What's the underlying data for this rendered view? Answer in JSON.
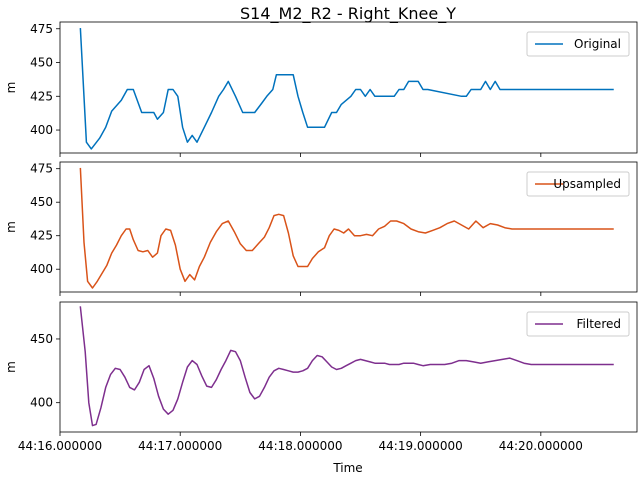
{
  "chart_data": {
    "type": "line",
    "title": "S14_M2_R2 - Right_Knee_Y",
    "xlabel": "Time",
    "x_ticks": [
      "44:16.000000",
      "44:17.000000",
      "44:18.000000",
      "44:19.000000",
      "44:20.000000"
    ],
    "x_tick_seconds": [
      0,
      1,
      2,
      3,
      4
    ],
    "xlim": [
      0,
      4.8
    ],
    "grid": false,
    "legend_placement": "upper right",
    "panels": [
      {
        "series_name": "Original",
        "ylabel": "m",
        "color": "#0072bd",
        "ylim": [
          383,
          480
        ],
        "y_ticks": [
          400,
          425,
          450,
          475
        ],
        "x": [
          0.17,
          0.22,
          0.26,
          0.33,
          0.38,
          0.43,
          0.51,
          0.56,
          0.61,
          0.68,
          0.72,
          0.78,
          0.81,
          0.86,
          0.9,
          0.94,
          0.98,
          1.02,
          1.06,
          1.1,
          1.14,
          1.2,
          1.26,
          1.32,
          1.36,
          1.4,
          1.46,
          1.52,
          1.56,
          1.62,
          1.68,
          1.72,
          1.77,
          1.8,
          1.86,
          1.94,
          1.98,
          2.02,
          2.06,
          2.14,
          2.2,
          2.26,
          2.3,
          2.34,
          2.42,
          2.46,
          2.5,
          2.54,
          2.58,
          2.62,
          2.66,
          2.7,
          2.74,
          2.78,
          2.82,
          2.86,
          2.9,
          2.94,
          2.98,
          3.02,
          3.06,
          3.34,
          3.38,
          3.42,
          3.46,
          3.5,
          3.54,
          3.58,
          3.62,
          3.66,
          3.7,
          3.74,
          4.6
        ],
        "values": [
          475,
          391,
          386,
          394,
          402,
          414,
          422,
          430,
          430,
          413,
          413,
          413,
          408,
          413,
          430,
          430,
          425,
          402,
          391,
          396,
          391,
          402,
          413,
          425,
          430,
          436,
          425,
          413,
          413,
          413,
          420,
          425,
          430,
          441,
          441,
          441,
          425,
          413,
          402,
          402,
          402,
          413,
          413,
          419,
          425,
          430,
          430,
          425,
          430,
          425,
          425,
          425,
          425,
          425,
          430,
          430,
          436,
          436,
          436,
          430,
          430,
          425,
          425,
          430,
          430,
          430,
          436,
          430,
          436,
          430,
          430,
          430,
          430
        ]
      },
      {
        "series_name": "Upsampled",
        "ylabel": "m",
        "color": "#d95319",
        "ylim": [
          383,
          480
        ],
        "y_ticks": [
          400,
          425,
          450,
          475
        ],
        "x": [
          0.17,
          0.2,
          0.23,
          0.27,
          0.31,
          0.35,
          0.39,
          0.43,
          0.47,
          0.51,
          0.55,
          0.58,
          0.61,
          0.65,
          0.69,
          0.73,
          0.77,
          0.81,
          0.84,
          0.88,
          0.92,
          0.96,
          1.0,
          1.04,
          1.08,
          1.12,
          1.16,
          1.2,
          1.25,
          1.3,
          1.35,
          1.4,
          1.45,
          1.5,
          1.55,
          1.6,
          1.65,
          1.7,
          1.74,
          1.78,
          1.82,
          1.86,
          1.9,
          1.94,
          1.98,
          2.02,
          2.06,
          2.1,
          2.15,
          2.2,
          2.24,
          2.28,
          2.32,
          2.36,
          2.4,
          2.45,
          2.5,
          2.55,
          2.6,
          2.65,
          2.7,
          2.75,
          2.8,
          2.86,
          2.92,
          2.98,
          3.04,
          3.1,
          3.16,
          3.22,
          3.28,
          3.34,
          3.4,
          3.46,
          3.52,
          3.58,
          3.64,
          3.7,
          3.76,
          3.82,
          3.88,
          3.94,
          4.0,
          4.1,
          4.2,
          4.3,
          4.4,
          4.5,
          4.6
        ],
        "values": [
          475,
          420,
          391,
          386,
          391,
          397,
          403,
          412,
          418,
          425,
          430,
          430,
          422,
          414,
          413,
          414,
          409,
          412,
          425,
          430,
          429,
          418,
          400,
          391,
          396,
          392,
          402,
          409,
          420,
          428,
          434,
          436,
          428,
          419,
          414,
          414,
          419,
          424,
          431,
          440,
          441,
          440,
          427,
          410,
          402,
          402,
          402,
          408,
          413,
          416,
          425,
          430,
          429,
          427,
          430,
          425,
          425,
          426,
          425,
          430,
          432,
          436,
          436,
          434,
          430,
          428,
          427,
          429,
          431,
          434,
          436,
          433,
          430,
          436,
          431,
          434,
          433,
          431,
          430,
          430,
          430,
          430,
          430,
          430,
          430,
          430,
          430,
          430,
          430
        ]
      },
      {
        "series_name": "Filtered",
        "ylabel": "m",
        "color": "#7e2f8e",
        "ylim": [
          377,
          479
        ],
        "y_ticks": [
          400,
          450
        ],
        "x": [
          0.17,
          0.21,
          0.24,
          0.27,
          0.3,
          0.34,
          0.38,
          0.42,
          0.46,
          0.5,
          0.54,
          0.58,
          0.62,
          0.66,
          0.7,
          0.74,
          0.78,
          0.82,
          0.86,
          0.9,
          0.94,
          0.98,
          1.02,
          1.06,
          1.1,
          1.14,
          1.18,
          1.22,
          1.26,
          1.3,
          1.34,
          1.38,
          1.42,
          1.46,
          1.5,
          1.54,
          1.58,
          1.62,
          1.66,
          1.7,
          1.74,
          1.78,
          1.82,
          1.86,
          1.9,
          1.94,
          1.98,
          2.02,
          2.06,
          2.1,
          2.14,
          2.18,
          2.22,
          2.26,
          2.3,
          2.34,
          2.38,
          2.42,
          2.46,
          2.5,
          2.54,
          2.58,
          2.62,
          2.66,
          2.7,
          2.74,
          2.78,
          2.82,
          2.86,
          2.9,
          2.94,
          2.98,
          3.02,
          3.08,
          3.14,
          3.2,
          3.26,
          3.32,
          3.38,
          3.44,
          3.5,
          3.56,
          3.62,
          3.68,
          3.74,
          3.8,
          3.86,
          3.92,
          3.98,
          4.04,
          4.1,
          4.2,
          4.3,
          4.4,
          4.5,
          4.6
        ],
        "values": [
          475,
          440,
          400,
          382,
          383,
          396,
          412,
          422,
          427,
          426,
          420,
          412,
          410,
          416,
          426,
          429,
          419,
          405,
          395,
          391,
          394,
          403,
          416,
          428,
          433,
          430,
          421,
          413,
          412,
          418,
          426,
          433,
          441,
          440,
          433,
          420,
          408,
          403,
          405,
          412,
          420,
          425,
          427,
          426,
          425,
          424,
          424,
          425,
          427,
          433,
          437,
          436,
          432,
          428,
          426,
          427,
          429,
          431,
          433,
          434,
          433,
          432,
          431,
          431,
          431,
          430,
          430,
          430,
          431,
          431,
          431,
          430,
          429,
          430,
          430,
          430,
          431,
          433,
          433,
          432,
          431,
          432,
          433,
          434,
          435,
          433,
          431,
          430,
          430,
          430,
          430,
          430,
          430,
          430,
          430,
          430
        ]
      }
    ]
  }
}
